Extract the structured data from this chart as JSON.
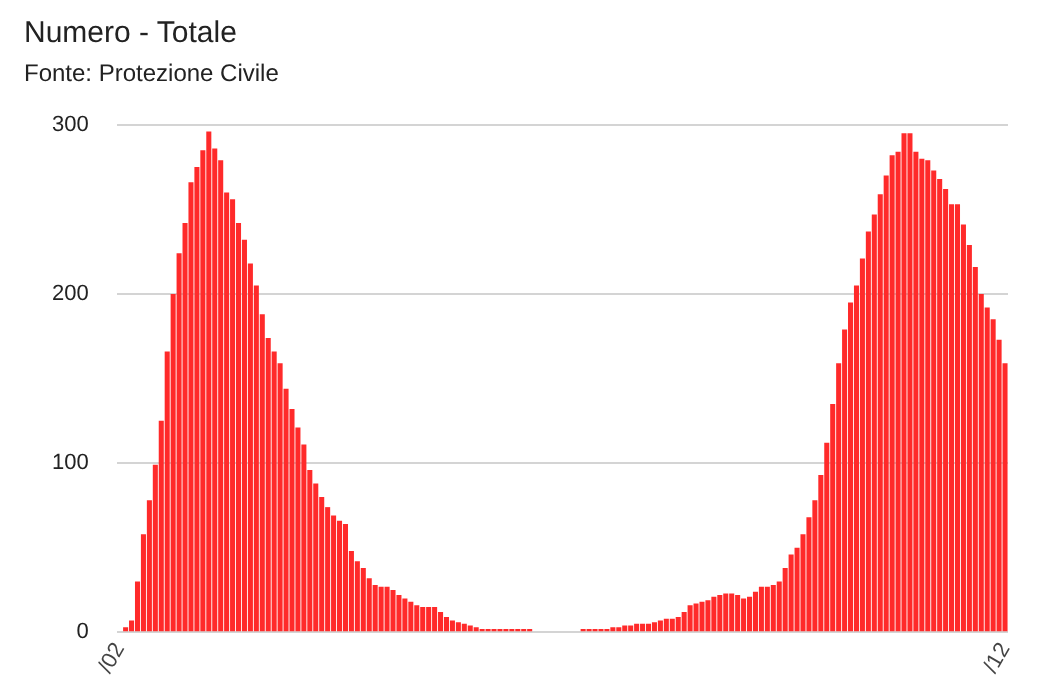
{
  "chart_data": {
    "type": "bar",
    "title": "Numero - Totale",
    "subtitle": "Fonte: Protezione Civile",
    "categories": [
      "/02",
      null,
      null,
      null,
      null,
      null,
      null,
      null,
      null,
      null,
      null,
      null,
      null,
      null,
      null,
      null,
      null,
      null,
      null,
      null,
      null,
      null,
      null,
      null,
      null,
      null,
      null,
      null,
      null,
      null,
      null,
      null,
      null,
      null,
      null,
      null,
      null,
      null,
      null,
      null,
      null,
      null,
      null,
      null,
      null,
      null,
      null,
      null,
      null,
      null,
      null,
      null,
      null,
      null,
      null,
      null,
      null,
      null,
      null,
      null,
      null,
      null,
      null,
      null,
      null,
      null,
      null,
      null,
      null,
      null,
      null,
      null,
      null,
      null,
      null,
      null,
      null,
      null,
      null,
      null,
      null,
      null,
      null,
      null,
      null,
      null,
      null,
      null,
      null,
      null,
      null,
      null,
      null,
      null,
      null,
      null,
      null,
      null,
      null,
      null,
      null,
      null,
      null,
      null,
      null,
      null,
      null,
      null,
      null,
      null,
      null,
      null,
      null,
      null,
      null,
      null,
      null,
      null,
      null,
      null,
      null,
      null,
      null,
      null,
      null,
      null,
      null,
      null,
      null,
      null,
      null,
      null,
      null,
      null,
      null,
      null,
      null,
      null,
      null,
      null,
      null,
      null,
      null,
      null,
      null,
      null,
      null,
      null,
      null,
      "/12"
    ],
    "values": [
      0,
      3,
      7,
      30,
      58,
      78,
      99,
      125,
      166,
      200,
      224,
      242,
      266,
      275,
      285,
      296,
      286,
      279,
      260,
      256,
      242,
      232,
      218,
      205,
      188,
      174,
      166,
      159,
      144,
      132,
      121,
      111,
      96,
      88,
      80,
      74,
      69,
      66,
      64,
      48,
      42,
      38,
      32,
      28,
      27,
      27,
      25,
      22,
      20,
      18,
      16,
      15,
      15,
      15,
      12,
      9,
      7,
      6,
      5,
      4,
      3,
      2,
      2,
      2,
      2,
      2,
      2,
      2,
      2,
      2,
      0,
      0,
      0,
      0,
      0,
      0,
      0,
      0,
      2,
      2,
      2,
      2,
      2,
      3,
      3,
      4,
      4,
      5,
      5,
      5,
      6,
      7,
      8,
      8,
      9,
      12,
      16,
      17,
      18,
      19,
      21,
      22,
      23,
      23,
      22,
      20,
      21,
      24,
      27,
      27,
      28,
      30,
      38,
      46,
      50,
      58,
      68,
      78,
      93,
      112,
      135,
      159,
      179,
      195,
      205,
      221,
      237,
      247,
      259,
      270,
      282,
      284,
      295,
      295,
      284,
      280,
      279,
      273,
      268,
      262,
      253,
      253,
      241,
      229,
      216,
      200,
      192,
      185,
      173,
      159
    ],
    "color": "#ff2a2a",
    "ylim": [
      0,
      300
    ],
    "yticks": [
      0,
      100,
      200,
      300
    ],
    "grid": "y"
  }
}
